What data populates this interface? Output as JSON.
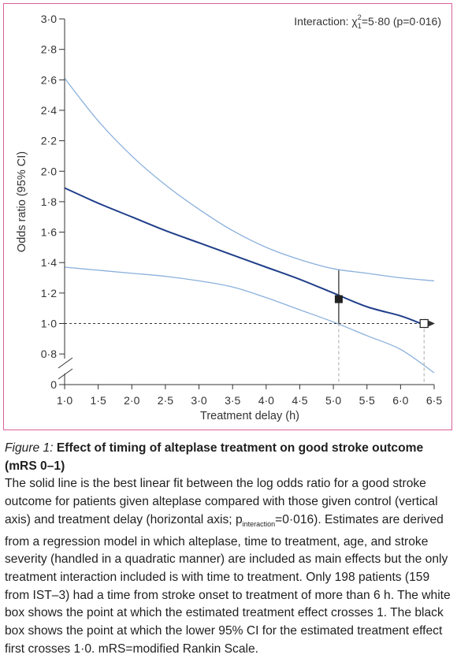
{
  "chart_data": {
    "type": "line",
    "title": "",
    "xlabel": "Treatment delay (h)",
    "ylabel": "Odds ratio (95% CI)",
    "xlim": [
      1.0,
      6.5
    ],
    "ylim": [
      0.0,
      3.0
    ],
    "axis_break": {
      "below": 0.8,
      "to": 0
    },
    "x_ticks": [
      {
        "v": 1.0,
        "label": "1·0"
      },
      {
        "v": 1.5,
        "label": "1·5"
      },
      {
        "v": 2.0,
        "label": "2·0"
      },
      {
        "v": 2.5,
        "label": "2·5"
      },
      {
        "v": 3.0,
        "label": "3·0"
      },
      {
        "v": 3.5,
        "label": "3·5"
      },
      {
        "v": 4.0,
        "label": "4·0"
      },
      {
        "v": 4.5,
        "label": "4·5"
      },
      {
        "v": 5.0,
        "label": "5·0"
      },
      {
        "v": 5.5,
        "label": "5·5"
      },
      {
        "v": 6.0,
        "label": "6·0"
      },
      {
        "v": 6.5,
        "label": "6·5"
      }
    ],
    "y_ticks": [
      {
        "v": 0.0,
        "label": "0"
      },
      {
        "v": 0.8,
        "label": "0·8"
      },
      {
        "v": 1.0,
        "label": "1·0"
      },
      {
        "v": 1.2,
        "label": "1·2"
      },
      {
        "v": 1.4,
        "label": "1·4"
      },
      {
        "v": 1.6,
        "label": "1·6"
      },
      {
        "v": 1.8,
        "label": "1·8"
      },
      {
        "v": 2.0,
        "label": "2·0"
      },
      {
        "v": 2.2,
        "label": "2·2"
      },
      {
        "v": 2.4,
        "label": "2·4"
      },
      {
        "v": 2.6,
        "label": "2·6"
      },
      {
        "v": 2.8,
        "label": "2·8"
      },
      {
        "v": 3.0,
        "label": "3·0"
      }
    ],
    "series": [
      {
        "role": "estimate",
        "color": "#1f3f8a",
        "x": [
          1.0,
          1.5,
          2.0,
          2.5,
          3.0,
          3.5,
          4.0,
          4.5,
          5.0,
          5.5,
          6.0,
          6.3
        ],
        "y": [
          1.89,
          1.79,
          1.7,
          1.61,
          1.53,
          1.45,
          1.37,
          1.29,
          1.2,
          1.11,
          1.05,
          1.0
        ]
      },
      {
        "role": "upper 95% CI",
        "color": "#8ab0dc",
        "x": [
          1.0,
          1.5,
          2.0,
          2.5,
          3.0,
          3.5,
          4.0,
          4.5,
          5.0,
          5.5,
          6.0,
          6.5
        ],
        "y": [
          2.61,
          2.33,
          2.1,
          1.91,
          1.75,
          1.61,
          1.5,
          1.42,
          1.36,
          1.33,
          1.3,
          1.28
        ]
      },
      {
        "role": "lower 95% CI",
        "color": "#8ab0dc",
        "x": [
          1.0,
          1.5,
          2.0,
          2.5,
          3.0,
          3.5,
          4.0,
          4.5,
          5.0,
          5.5,
          6.0,
          6.5
        ],
        "y": [
          1.37,
          1.35,
          1.33,
          1.31,
          1.28,
          1.24,
          1.17,
          1.09,
          1.01,
          0.92,
          0.83,
          0.75
        ]
      }
    ],
    "reference_line": {
      "y": 1.0,
      "style": "dashed",
      "arrow": true
    },
    "markers": [
      {
        "kind": "filled-square",
        "x": 5.08,
        "y": 1.16,
        "ci_low": 1.0,
        "ci_high": 1.35
      },
      {
        "kind": "open-square",
        "x": 6.35,
        "y": 1.0
      }
    ],
    "vertical_guides": [
      5.08,
      6.35
    ],
    "annotation": {
      "prefix": "Interaction: χ",
      "sup": "2",
      "sub": "1",
      "suffix": "=5·80 (p=0·016)"
    }
  },
  "caption": {
    "figure_label": "Figure 1:",
    "title": "Effect of timing of alteplase treatment on good stroke outcome (mRS 0–1)",
    "body_part1": "The solid line is the best linear fit between the log odds ratio for a good stroke outcome for patients given alteplase compared with those given control (vertical axis) and treatment delay (horizontal axis; p",
    "body_sub": "interaction",
    "body_part2": "=0·016). Estimates are derived from a regression model in which alteplase, time to treatment, age, and stroke severity (handled in a quadratic manner) are included as main effects but the only treatment interaction included is with time to treatment. Only 198 patients (159 from IST–3) had a time from stroke onset to treatment of more than 6 h. The white box shows the point at which the estimated treatment effect crosses 1. The black box shows the point at which the lower 95% CI for the estimated treatment effect first crosses 1·0. mRS=modified Rankin Scale."
  }
}
